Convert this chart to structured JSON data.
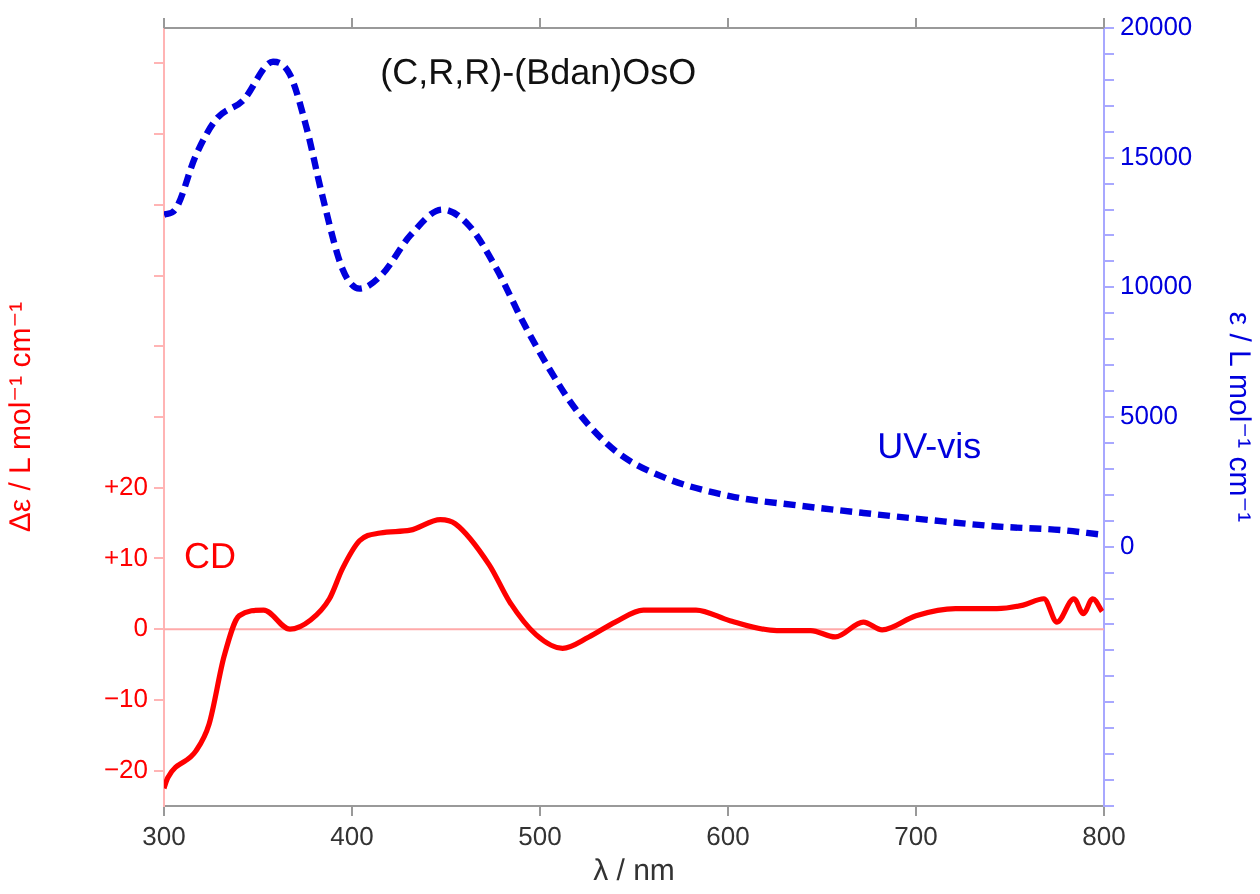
{
  "chart_data": {
    "type": "line",
    "title": "(C,R,R)-(Bdan)OsO",
    "xlabel": "λ / nm",
    "ylabel": "Δε / L mol⁻¹ cm⁻¹",
    "y2label": "ε / L mol⁻¹ cm⁻¹",
    "xlim": [
      300,
      800
    ],
    "xticks": [
      300,
      400,
      500,
      600,
      700,
      800
    ],
    "ylim": [
      -25,
      85
    ],
    "yticks": [
      {
        "value": -20,
        "label": "−20"
      },
      {
        "value": -10,
        "label": "−10"
      },
      0,
      {
        "value": 10,
        "label": "+10"
      },
      {
        "value": 20,
        "label": "+20"
      },
      {
        "value": 30,
        "label": null
      },
      {
        "value": 40,
        "label": null
      },
      {
        "value": 50,
        "label": null
      },
      {
        "value": 60,
        "label": null
      },
      {
        "value": 70,
        "label": null
      },
      {
        "value": 80,
        "label": null
      }
    ],
    "y2lim": [
      -10000,
      20000
    ],
    "y2ticks": [
      {
        "value": -10000,
        "label": null
      },
      {
        "value": -9000,
        "label": null
      },
      {
        "value": -8000,
        "label": null
      },
      {
        "value": -7000,
        "label": null
      },
      {
        "value": -6000,
        "label": null
      },
      {
        "value": -5000,
        "label": null
      },
      {
        "value": -4000,
        "label": null
      },
      {
        "value": -3000,
        "label": null
      },
      {
        "value": -2000,
        "label": null
      },
      {
        "value": -1000,
        "label": null
      },
      0,
      {
        "value": 1000,
        "label": null
      },
      {
        "value": 2000,
        "label": null
      },
      {
        "value": 3000,
        "label": null
      },
      {
        "value": 4000,
        "label": null
      },
      5000,
      {
        "value": 6000,
        "label": null
      },
      {
        "value": 7000,
        "label": null
      },
      {
        "value": 8000,
        "label": null
      },
      {
        "value": 9000,
        "label": null
      },
      10000,
      {
        "value": 11000,
        "label": null
      },
      {
        "value": 12000,
        "label": null
      },
      {
        "value": 13000,
        "label": null
      },
      {
        "value": 14000,
        "label": null
      },
      15000,
      {
        "value": 16000,
        "label": null
      },
      {
        "value": 17000,
        "label": null
      },
      {
        "value": 18000,
        "label": null
      },
      {
        "value": 19000,
        "label": null
      },
      20000
    ],
    "grid": false,
    "legend": false,
    "marker": "none",
    "ref_lines": [
      {
        "axis": "y",
        "value": 0,
        "color": "#ffaaaa"
      }
    ],
    "series": [
      {
        "name": "UV-vis",
        "color": "#0000dd",
        "axis": "y2",
        "line_style": "dashed",
        "x": [
          300,
          306,
          317,
          328,
          342,
          358,
          367,
          376,
          384,
          395,
          404,
          416,
          431,
          448,
          462,
          477,
          491,
          505,
          519,
          540,
          565,
          601,
          636,
          672,
          707,
          743,
          777,
          798
        ],
        "values": [
          12800,
          13000,
          15100,
          16500,
          17200,
          18700,
          18200,
          16100,
          13600,
          10700,
          9950,
          10500,
          12000,
          13000,
          12400,
          10700,
          8660,
          6850,
          5300,
          3700,
          2700,
          1950,
          1600,
          1300,
          1030,
          780,
          640,
          470
        ]
      },
      {
        "name": "CD",
        "color": "#ff0000",
        "axis": "y",
        "line_style": "solid",
        "x": [
          300,
          302,
          317,
          324,
          332,
          340,
          353,
          367,
          378,
          388,
          395,
          404,
          415,
          431,
          447,
          455,
          473,
          484,
          498,
          512,
          526,
          540,
          555,
          565,
          583,
          601,
          626,
          644,
          657,
          672,
          682,
          700,
          721,
          743,
          757,
          768,
          775,
          784,
          789,
          794,
          799
        ],
        "values": [
          -22.5,
          -21,
          -17.2,
          -13.4,
          -3.8,
          1.9,
          2.7,
          0,
          1.3,
          4.3,
          8.6,
          12.5,
          13.6,
          14.0,
          15.5,
          14.9,
          9.1,
          3.8,
          -0.8,
          -2.7,
          -1.1,
          1.0,
          2.7,
          2.7,
          2.7,
          1.2,
          -0.2,
          -0.2,
          -1.1,
          1.0,
          -0.1,
          1.9,
          2.9,
          2.9,
          3.4,
          4.3,
          1.0,
          4.3,
          2.2,
          4.3,
          2.5
        ]
      }
    ]
  }
}
